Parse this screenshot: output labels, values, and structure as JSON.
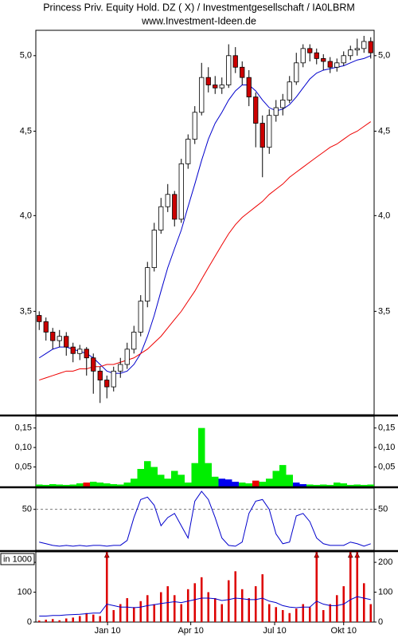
{
  "chart_data": [
    {
      "type": "candlestick",
      "title": "Princess Priv. Equity Hold. DZ  ( X)   / Investmentgesellschaft / IA0LBRM",
      "subtitle": "www.Investment-Ideen.de",
      "log": true,
      "xlim": [
        0,
        50
      ],
      "x": [
        0.5,
        1.5,
        2.5,
        3.5,
        4.5,
        5.5,
        6.5,
        7.5,
        8.5,
        9.5,
        10.5,
        11.5,
        12.5,
        13.5,
        14.5,
        15.5,
        16.5,
        17.5,
        18.5,
        19.5,
        20.5,
        21.5,
        22.5,
        23.5,
        24.5,
        25.5,
        26.5,
        27.5,
        28.5,
        29.5,
        30.5,
        31.5,
        32.5,
        33.5,
        34.5,
        35.5,
        36.5,
        37.5,
        38.5,
        39.5,
        40.5,
        41.5,
        42.5,
        43.5,
        44.5,
        45.5,
        46.5,
        47.5,
        48.5,
        49.5
      ],
      "open": [
        3.48,
        3.45,
        3.4,
        3.36,
        3.38,
        3.33,
        3.3,
        3.32,
        3.28,
        3.22,
        3.18,
        3.15,
        3.22,
        3.25,
        3.32,
        3.4,
        3.55,
        3.72,
        3.92,
        4.05,
        4.12,
        3.98,
        4.3,
        4.45,
        4.62,
        4.85,
        4.8,
        4.78,
        4.8,
        5.0,
        4.92,
        4.85,
        4.72,
        4.55,
        4.4,
        4.6,
        4.65,
        4.7,
        4.82,
        4.95,
        5.05,
        5.02,
        4.98,
        4.96,
        4.92,
        4.95,
        5.0,
        5.04,
        5.05,
        5.1
      ],
      "high": [
        3.5,
        3.47,
        3.42,
        3.41,
        3.4,
        3.35,
        3.34,
        3.33,
        3.3,
        3.24,
        3.2,
        3.24,
        3.28,
        3.35,
        3.43,
        3.58,
        3.75,
        3.96,
        4.1,
        4.18,
        4.14,
        4.33,
        4.48,
        4.66,
        4.95,
        4.92,
        4.86,
        4.85,
        5.08,
        5.06,
        4.96,
        4.9,
        4.75,
        4.6,
        4.64,
        4.7,
        4.74,
        4.86,
        5.02,
        5.08,
        5.08,
        5.05,
        5.01,
        4.99,
        4.98,
        5.03,
        5.07,
        5.12,
        5.14,
        5.13
      ],
      "low": [
        3.41,
        3.36,
        3.32,
        3.33,
        3.29,
        3.26,
        3.27,
        3.2,
        3.12,
        3.08,
        3.1,
        3.13,
        3.19,
        3.23,
        3.3,
        3.38,
        3.52,
        3.7,
        3.9,
        4.02,
        3.94,
        3.96,
        4.27,
        4.42,
        4.6,
        4.75,
        4.74,
        4.74,
        4.78,
        4.88,
        4.8,
        4.66,
        4.4,
        4.22,
        4.36,
        4.56,
        4.6,
        4.68,
        4.8,
        4.92,
        4.96,
        4.94,
        4.9,
        4.88,
        4.89,
        4.93,
        4.97,
        5.0,
        5.02,
        4.98
      ],
      "close": [
        3.45,
        3.4,
        3.36,
        3.38,
        3.33,
        3.3,
        3.32,
        3.28,
        3.22,
        3.18,
        3.15,
        3.22,
        3.25,
        3.32,
        3.4,
        3.55,
        3.72,
        3.92,
        4.05,
        4.12,
        3.98,
        4.3,
        4.45,
        4.62,
        4.85,
        4.8,
        4.78,
        4.8,
        5.0,
        4.92,
        4.85,
        4.72,
        4.55,
        4.4,
        4.6,
        4.65,
        4.7,
        4.82,
        4.95,
        5.05,
        5.02,
        4.98,
        4.96,
        4.92,
        4.95,
        5.0,
        5.04,
        5.05,
        5.1,
        5.02
      ],
      "up_color": "#ffffff",
      "down_color": "#cc0000",
      "lines": [
        {
          "color": "#0000cc",
          "values": [
            3.28,
            3.3,
            3.32,
            3.33,
            3.33,
            3.32,
            3.31,
            3.3,
            3.28,
            3.25,
            3.22,
            3.21,
            3.21,
            3.22,
            3.25,
            3.3,
            3.38,
            3.48,
            3.6,
            3.72,
            3.82,
            3.92,
            4.05,
            4.18,
            4.32,
            4.45,
            4.55,
            4.62,
            4.7,
            4.76,
            4.8,
            4.8,
            4.76,
            4.7,
            4.65,
            4.63,
            4.64,
            4.67,
            4.72,
            4.78,
            4.84,
            4.88,
            4.9,
            4.91,
            4.92,
            4.93,
            4.95,
            4.97,
            4.98,
            5.0
          ]
        },
        {
          "color": "#ee0000",
          "values": [
            3.18,
            3.19,
            3.2,
            3.21,
            3.22,
            3.22,
            3.23,
            3.23,
            3.24,
            3.24,
            3.25,
            3.25,
            3.26,
            3.27,
            3.28,
            3.3,
            3.32,
            3.35,
            3.38,
            3.42,
            3.46,
            3.5,
            3.55,
            3.6,
            3.66,
            3.72,
            3.78,
            3.84,
            3.9,
            3.95,
            3.99,
            4.02,
            4.05,
            4.08,
            4.12,
            4.15,
            4.18,
            4.22,
            4.25,
            4.28,
            4.31,
            4.34,
            4.37,
            4.4,
            4.42,
            4.45,
            4.48,
            4.5,
            4.53,
            4.56
          ]
        }
      ],
      "ylim": [
        3.03,
        5.18
      ],
      "yticks": [
        {
          "value": 3.5,
          "label": "3,5"
        },
        {
          "value": 4.0,
          "label": "4,0"
        },
        {
          "value": 4.5,
          "label": "4,5"
        },
        {
          "value": 5.0,
          "label": "5,0"
        }
      ]
    },
    {
      "type": "bar",
      "values": [
        0.005,
        0.004,
        0.006,
        0.005,
        0.004,
        0.005,
        0.008,
        0.01,
        0.012,
        0.01,
        0.008,
        0.006,
        0.005,
        0.01,
        0.02,
        0.045,
        0.065,
        0.05,
        0.03,
        0.02,
        0.04,
        0.03,
        0.01,
        0.06,
        0.15,
        0.06,
        0.025,
        0.02,
        0.018,
        0.012,
        0.01,
        0.008,
        0.015,
        0.012,
        0.02,
        0.04,
        0.055,
        0.03,
        0.01,
        0.006,
        0.005,
        0.004,
        0.005,
        0.004,
        0.01,
        0.008,
        0.004,
        0.005,
        0.004,
        0.005
      ],
      "colors": [
        "#00ee00",
        "#00ee00",
        "#00ee00",
        "#00ee00",
        "#00ee00",
        "#00ee00",
        "#00ee00",
        "#ee0000",
        "#00ee00",
        "#00ee00",
        "#00ee00",
        "#00ee00",
        "#00ee00",
        "#00ee00",
        "#00ee00",
        "#00ee00",
        "#00ee00",
        "#00ee00",
        "#00ee00",
        "#00ee00",
        "#00ee00",
        "#00ee00",
        "#00ee00",
        "#00ee00",
        "#00ee00",
        "#00ee00",
        "#00ee00",
        "#0000ee",
        "#0000ee",
        "#0000ee",
        "#00ee00",
        "#00ee00",
        "#ee0000",
        "#00ee00",
        "#00ee00",
        "#00ee00",
        "#00ee00",
        "#00ee00",
        "#0000ee",
        "#0000ee",
        "#00ee00",
        "#00ee00",
        "#00ee00",
        "#00ee00",
        "#00ee00",
        "#00ee00",
        "#00ee00",
        "#00ee00",
        "#00ee00",
        "#00ee00"
      ],
      "ylim": [
        0,
        0.18
      ],
      "yticks": [
        {
          "value": 0.05,
          "label": "0,05"
        },
        {
          "value": 0.1,
          "label": "0,10"
        },
        {
          "value": 0.15,
          "label": "0,15"
        }
      ]
    },
    {
      "type": "line",
      "color": "#0000cc",
      "values": [
        10,
        8,
        6,
        5,
        6,
        5,
        6,
        5,
        6,
        6,
        5,
        6,
        6,
        12,
        40,
        62,
        65,
        55,
        30,
        40,
        45,
        30,
        15,
        60,
        72,
        62,
        40,
        15,
        6,
        5,
        10,
        45,
        60,
        62,
        50,
        20,
        8,
        10,
        42,
        45,
        35,
        15,
        8,
        6,
        6,
        6,
        10,
        8,
        5,
        8
      ],
      "ylim": [
        0,
        76
      ],
      "yticks": [
        50
      ],
      "grid": "dashed"
    },
    {
      "type": "bar",
      "unit_label": "in 1000",
      "color": "#dd0000",
      "values": [
        5,
        8,
        10,
        6,
        12,
        15,
        20,
        30,
        25,
        20,
        260,
        40,
        60,
        80,
        50,
        70,
        90,
        60,
        100,
        120,
        90,
        60,
        110,
        130,
        150,
        100,
        80,
        60,
        140,
        170,
        110,
        80,
        120,
        160,
        60,
        50,
        40,
        30,
        45,
        60,
        50,
        280,
        40,
        60,
        90,
        120,
        250,
        240,
        130,
        60
      ],
      "line": {
        "color": "#0000cc",
        "values": [
          20,
          20,
          22,
          22,
          24,
          25,
          26,
          28,
          30,
          30,
          60,
          55,
          50,
          50,
          48,
          50,
          55,
          58,
          62,
          65,
          68,
          65,
          70,
          75,
          80,
          80,
          78,
          72,
          75,
          80,
          78,
          75,
          75,
          80,
          70,
          65,
          55,
          50,
          48,
          50,
          50,
          70,
          60,
          55,
          55,
          60,
          75,
          85,
          80,
          75
        ]
      },
      "ylim": [
        0,
        235
      ],
      "yticks": [
        0,
        100,
        200
      ],
      "xticks": [
        {
          "value": 10.6,
          "label": "Jan 10"
        },
        {
          "value": 22.9,
          "label": "Apr 10"
        },
        {
          "value": 35.3,
          "label": "Jul 10"
        },
        {
          "value": 45.5,
          "label": "Okt 10"
        }
      ]
    }
  ]
}
